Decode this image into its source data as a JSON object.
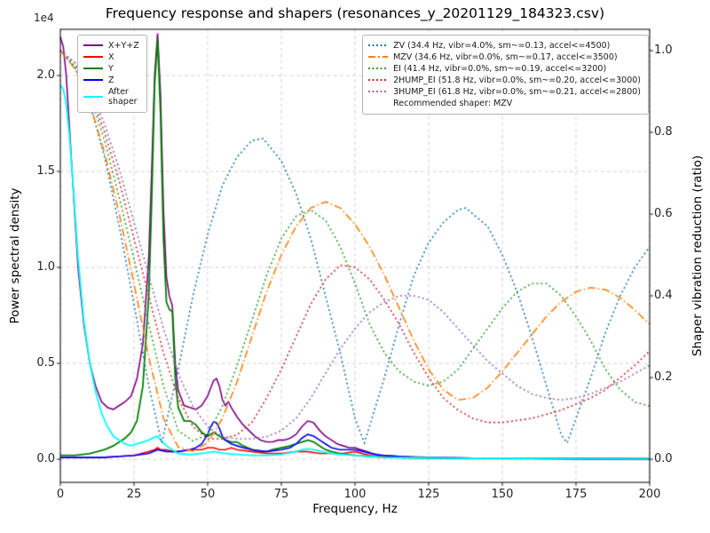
{
  "chart_data": {
    "type": "line",
    "title": "Frequency response and shapers (resonances_y_20201129_184323.csv)",
    "xlabel": "Frequency, Hz",
    "ylabel_left": "Power spectral density",
    "ylabel_right": "Shaper vibration reduction (ratio)",
    "psd_offset_text": "1e4",
    "recommended_note": "Recommended shaper: MZV",
    "xlim": [
      0,
      200
    ],
    "ylim_left_1e4": [
      -0.12,
      2.24
    ],
    "ylim_right": [
      -0.057,
      1.052
    ],
    "grid": true,
    "legend_left_position": "upper left",
    "legend_right_position": "upper right",
    "xticks": {
      "values": [
        0,
        25,
        50,
        75,
        100,
        125,
        150,
        175,
        200
      ],
      "labels": [
        "0",
        "25",
        "50",
        "75",
        "100",
        "125",
        "150",
        "175",
        "200"
      ]
    },
    "yticks_left": {
      "values": [
        0.0,
        0.5,
        1.0,
        1.5,
        2.0
      ],
      "labels": [
        "0.0",
        "0.5",
        "1.0",
        "1.5",
        "2.0"
      ]
    },
    "yticks_right": {
      "values": [
        0.0,
        0.2,
        0.4,
        0.6,
        0.8,
        1.0
      ],
      "labels": [
        "0.0",
        "0.2",
        "0.4",
        "0.6",
        "0.8",
        "1.0"
      ]
    },
    "series": [
      {
        "name": "psd-xyz",
        "legend_label": "X+Y+Z",
        "axis": "left",
        "color": "#800080",
        "style": "solid",
        "width": 1.6,
        "x": [
          0,
          1,
          2,
          3,
          4,
          5,
          6,
          8,
          10,
          12,
          14,
          16,
          18,
          20,
          22,
          24,
          26,
          28,
          30,
          31,
          32,
          33,
          34,
          35,
          36,
          37,
          38,
          39,
          40,
          42,
          44,
          46,
          48,
          50,
          51,
          52,
          53,
          54,
          55,
          56,
          57,
          58,
          60,
          62,
          64,
          66,
          68,
          70,
          72,
          74,
          76,
          78,
          80,
          82,
          84,
          86,
          88,
          90,
          92,
          94,
          96,
          98,
          100,
          102,
          104,
          106,
          108,
          110,
          115,
          120,
          130,
          140,
          150,
          160,
          170,
          180,
          190,
          200
        ],
        "y": [
          2.2,
          2.15,
          2.0,
          1.75,
          1.5,
          1.25,
          1.0,
          0.7,
          0.5,
          0.38,
          0.3,
          0.27,
          0.26,
          0.28,
          0.3,
          0.33,
          0.42,
          0.6,
          1.05,
          1.5,
          2.0,
          2.22,
          1.9,
          1.3,
          0.95,
          0.85,
          0.8,
          0.5,
          0.36,
          0.28,
          0.27,
          0.26,
          0.28,
          0.33,
          0.37,
          0.41,
          0.42,
          0.38,
          0.31,
          0.28,
          0.3,
          0.27,
          0.22,
          0.18,
          0.15,
          0.12,
          0.1,
          0.09,
          0.09,
          0.1,
          0.1,
          0.11,
          0.13,
          0.17,
          0.2,
          0.19,
          0.15,
          0.12,
          0.1,
          0.08,
          0.07,
          0.06,
          0.06,
          0.05,
          0.04,
          0.03,
          0.02,
          0.02,
          0.015,
          0.012,
          0.008,
          0.006,
          0.005,
          0.004,
          0.004,
          0.003,
          0.003,
          0.003
        ]
      },
      {
        "name": "psd-x",
        "legend_label": "X",
        "axis": "left",
        "color": "#ff0000",
        "style": "solid",
        "width": 1.6,
        "x": [
          0,
          5,
          10,
          15,
          20,
          25,
          30,
          32,
          33,
          34,
          36,
          38,
          40,
          44,
          48,
          50,
          52,
          54,
          56,
          58,
          60,
          65,
          70,
          75,
          80,
          84,
          88,
          92,
          96,
          100,
          105,
          110,
          120,
          140,
          160,
          180,
          200
        ],
        "y": [
          0.01,
          0.01,
          0.01,
          0.01,
          0.015,
          0.02,
          0.04,
          0.05,
          0.06,
          0.05,
          0.05,
          0.04,
          0.04,
          0.05,
          0.05,
          0.06,
          0.06,
          0.05,
          0.05,
          0.06,
          0.05,
          0.04,
          0.03,
          0.03,
          0.04,
          0.04,
          0.03,
          0.03,
          0.03,
          0.04,
          0.02,
          0.015,
          0.01,
          0.005,
          0.004,
          0.003,
          0.003
        ]
      },
      {
        "name": "psd-y",
        "legend_label": "Y",
        "axis": "left",
        "color": "#008000",
        "style": "solid",
        "width": 1.8,
        "x": [
          0,
          5,
          10,
          15,
          18,
          20,
          22,
          24,
          26,
          28,
          30,
          31,
          32,
          33,
          34,
          35,
          36,
          37,
          38,
          39,
          40,
          42,
          44,
          46,
          48,
          50,
          52,
          54,
          56,
          58,
          60,
          62,
          65,
          68,
          70,
          72,
          75,
          78,
          80,
          82,
          84,
          86,
          88,
          90,
          92,
          95,
          100,
          105,
          110,
          120,
          130,
          140,
          160,
          180,
          200
        ],
        "y": [
          0.02,
          0.02,
          0.03,
          0.05,
          0.07,
          0.09,
          0.11,
          0.14,
          0.2,
          0.38,
          0.85,
          1.35,
          1.95,
          2.19,
          1.8,
          1.15,
          0.82,
          0.78,
          0.77,
          0.42,
          0.27,
          0.2,
          0.2,
          0.18,
          0.14,
          0.12,
          0.14,
          0.12,
          0.1,
          0.09,
          0.09,
          0.07,
          0.05,
          0.04,
          0.04,
          0.05,
          0.06,
          0.07,
          0.08,
          0.09,
          0.1,
          0.09,
          0.07,
          0.05,
          0.04,
          0.03,
          0.02,
          0.015,
          0.01,
          0.007,
          0.005,
          0.004,
          0.003,
          0.002,
          0.002
        ]
      },
      {
        "name": "psd-z",
        "legend_label": "Z",
        "axis": "left",
        "color": "#0000ff",
        "style": "solid",
        "width": 1.6,
        "x": [
          0,
          5,
          10,
          15,
          20,
          25,
          30,
          33,
          36,
          40,
          44,
          46,
          48,
          50,
          51,
          52,
          53,
          54,
          55,
          56,
          58,
          60,
          62,
          65,
          70,
          75,
          78,
          80,
          82,
          84,
          86,
          88,
          90,
          92,
          95,
          100,
          103,
          105,
          110,
          115,
          120,
          140,
          160,
          180,
          200
        ],
        "y": [
          0.01,
          0.01,
          0.01,
          0.01,
          0.015,
          0.02,
          0.03,
          0.05,
          0.04,
          0.04,
          0.05,
          0.06,
          0.08,
          0.13,
          0.17,
          0.195,
          0.19,
          0.16,
          0.12,
          0.1,
          0.08,
          0.07,
          0.06,
          0.05,
          0.04,
          0.05,
          0.06,
          0.08,
          0.11,
          0.13,
          0.12,
          0.1,
          0.08,
          0.06,
          0.05,
          0.05,
          0.04,
          0.03,
          0.02,
          0.015,
          0.01,
          0.005,
          0.004,
          0.003,
          0.002
        ]
      },
      {
        "name": "psd-after-shaper",
        "legend_label": "After\nshaper",
        "axis": "left",
        "color": "#00ffff",
        "style": "solid",
        "width": 1.8,
        "x": [
          0,
          1,
          2,
          3,
          4,
          5,
          6,
          8,
          10,
          12,
          14,
          16,
          18,
          20,
          22,
          24,
          26,
          28,
          30,
          32,
          33,
          34,
          36,
          38,
          40,
          44,
          48,
          50,
          52,
          54,
          56,
          60,
          65,
          70,
          75,
          80,
          82,
          84,
          86,
          90,
          95,
          100,
          110,
          120,
          140,
          160,
          180,
          200
        ],
        "y": [
          1.95,
          1.93,
          1.85,
          1.7,
          1.5,
          1.28,
          1.05,
          0.72,
          0.5,
          0.35,
          0.24,
          0.17,
          0.12,
          0.1,
          0.08,
          0.07,
          0.08,
          0.09,
          0.1,
          0.115,
          0.12,
          0.1,
          0.07,
          0.05,
          0.03,
          0.025,
          0.03,
          0.035,
          0.04,
          0.035,
          0.03,
          0.025,
          0.02,
          0.02,
          0.025,
          0.04,
          0.05,
          0.055,
          0.05,
          0.035,
          0.025,
          0.02,
          0.01,
          0.008,
          0.005,
          0.004,
          0.003,
          0.003
        ]
      },
      {
        "name": "shaper-zv",
        "legend_label": "ZV (34.4 Hz, vibr=4.0%, sm~=0.13, accel<=4500)",
        "axis": "right",
        "color": "#1f77b4",
        "style": "dotted",
        "width": 1.6,
        "x": [
          0,
          5,
          10,
          15,
          20,
          25,
          30,
          34.4,
          40,
          45,
          50,
          55,
          60,
          65,
          68.8,
          75,
          80,
          85,
          90,
          95,
          100,
          103.2,
          110,
          115,
          120,
          125,
          130,
          135,
          137.6,
          145,
          150,
          155,
          160,
          165,
          170,
          172,
          180,
          185,
          190,
          195,
          200
        ],
        "y": [
          1.0,
          0.96,
          0.87,
          0.74,
          0.57,
          0.38,
          0.18,
          0.04,
          0.22,
          0.4,
          0.55,
          0.67,
          0.74,
          0.78,
          0.785,
          0.73,
          0.65,
          0.54,
          0.4,
          0.26,
          0.1,
          0.04,
          0.2,
          0.33,
          0.45,
          0.53,
          0.58,
          0.61,
          0.615,
          0.57,
          0.5,
          0.41,
          0.3,
          0.18,
          0.06,
          0.04,
          0.2,
          0.31,
          0.4,
          0.47,
          0.52
        ]
      },
      {
        "name": "shaper-mzv",
        "legend_label": "MZV (34.6 Hz, vibr=0.0%, sm~=0.17, accel<=3500)",
        "axis": "right",
        "color": "#ff7f0e",
        "style": "dashdot",
        "width": 1.6,
        "x": [
          0,
          5,
          10,
          15,
          20,
          25,
          30,
          35,
          40,
          45,
          50,
          55,
          60,
          65,
          70,
          75,
          80,
          85,
          90,
          95,
          100,
          105,
          110,
          115,
          120,
          125,
          130,
          135,
          140,
          145,
          150,
          155,
          160,
          165,
          170,
          175,
          180,
          185,
          190,
          195,
          200
        ],
        "y": [
          1.0,
          0.955,
          0.87,
          0.75,
          0.6,
          0.43,
          0.25,
          0.1,
          0.03,
          0.02,
          0.04,
          0.1,
          0.19,
          0.3,
          0.41,
          0.5,
          0.57,
          0.615,
          0.63,
          0.615,
          0.575,
          0.52,
          0.45,
          0.37,
          0.29,
          0.22,
          0.17,
          0.145,
          0.15,
          0.175,
          0.215,
          0.26,
          0.305,
          0.35,
          0.385,
          0.41,
          0.42,
          0.415,
          0.395,
          0.365,
          0.33
        ]
      },
      {
        "name": "shaper-ei",
        "legend_label": "EI (41.4 Hz, vibr=0.0%, sm~=0.19, accel<=3200)",
        "axis": "right",
        "color": "#2ca02c",
        "style": "dotted",
        "width": 1.6,
        "x": [
          0,
          5,
          10,
          15,
          20,
          25,
          30,
          35,
          40,
          45,
          50,
          55,
          60,
          65,
          70,
          75,
          80,
          85,
          90,
          95,
          100,
          105,
          110,
          115,
          120,
          125,
          130,
          135,
          140,
          145,
          150,
          155,
          160,
          165,
          170,
          175,
          180,
          185,
          190,
          195,
          200
        ],
        "y": [
          1.0,
          0.96,
          0.89,
          0.78,
          0.64,
          0.49,
          0.33,
          0.18,
          0.07,
          0.045,
          0.06,
          0.13,
          0.23,
          0.34,
          0.45,
          0.54,
          0.595,
          0.61,
          0.585,
          0.52,
          0.43,
          0.33,
          0.26,
          0.215,
          0.19,
          0.18,
          0.19,
          0.22,
          0.27,
          0.32,
          0.37,
          0.41,
          0.43,
          0.43,
          0.4,
          0.35,
          0.29,
          0.22,
          0.17,
          0.14,
          0.13
        ]
      },
      {
        "name": "shaper-2hump-ei",
        "legend_label": "2HUMP_EI (51.8 Hz, vibr=0.0%, sm~=0.20, accel<=3000)",
        "axis": "right",
        "color": "#d62728",
        "style": "dotted",
        "width": 1.6,
        "x": [
          0,
          5,
          10,
          15,
          20,
          25,
          30,
          35,
          40,
          45,
          50,
          55,
          60,
          65,
          70,
          75,
          80,
          85,
          90,
          95,
          100,
          105,
          110,
          115,
          120,
          125,
          130,
          135,
          140,
          145,
          150,
          155,
          160,
          165,
          170,
          175,
          180,
          185,
          190,
          195,
          200
        ],
        "y": [
          1.0,
          0.97,
          0.9,
          0.8,
          0.68,
          0.54,
          0.4,
          0.26,
          0.15,
          0.08,
          0.05,
          0.05,
          0.06,
          0.09,
          0.15,
          0.22,
          0.3,
          0.38,
          0.44,
          0.475,
          0.47,
          0.44,
          0.39,
          0.33,
          0.26,
          0.2,
          0.15,
          0.12,
          0.1,
          0.09,
          0.09,
          0.095,
          0.1,
          0.11,
          0.12,
          0.135,
          0.15,
          0.17,
          0.2,
          0.23,
          0.265
        ]
      },
      {
        "name": "shaper-3hump-ei",
        "legend_label": "3HUMP_EI (61.8 Hz, vibr=0.0%, sm~=0.21, accel<=2800)",
        "axis": "right",
        "color": "#9467bd",
        "style": "dotted",
        "width": 1.6,
        "x": [
          0,
          5,
          10,
          15,
          20,
          25,
          30,
          35,
          40,
          45,
          50,
          55,
          60,
          65,
          70,
          75,
          80,
          85,
          90,
          95,
          100,
          105,
          110,
          115,
          120,
          125,
          130,
          135,
          140,
          145,
          150,
          155,
          160,
          165,
          170,
          175,
          180,
          185,
          190,
          195,
          200
        ],
        "y": [
          1.0,
          0.97,
          0.91,
          0.82,
          0.71,
          0.58,
          0.45,
          0.32,
          0.21,
          0.13,
          0.08,
          0.055,
          0.05,
          0.05,
          0.055,
          0.07,
          0.1,
          0.15,
          0.21,
          0.27,
          0.32,
          0.36,
          0.385,
          0.4,
          0.4,
          0.39,
          0.36,
          0.32,
          0.28,
          0.24,
          0.21,
          0.18,
          0.16,
          0.15,
          0.145,
          0.15,
          0.16,
          0.175,
          0.19,
          0.21,
          0.23
        ]
      }
    ]
  }
}
